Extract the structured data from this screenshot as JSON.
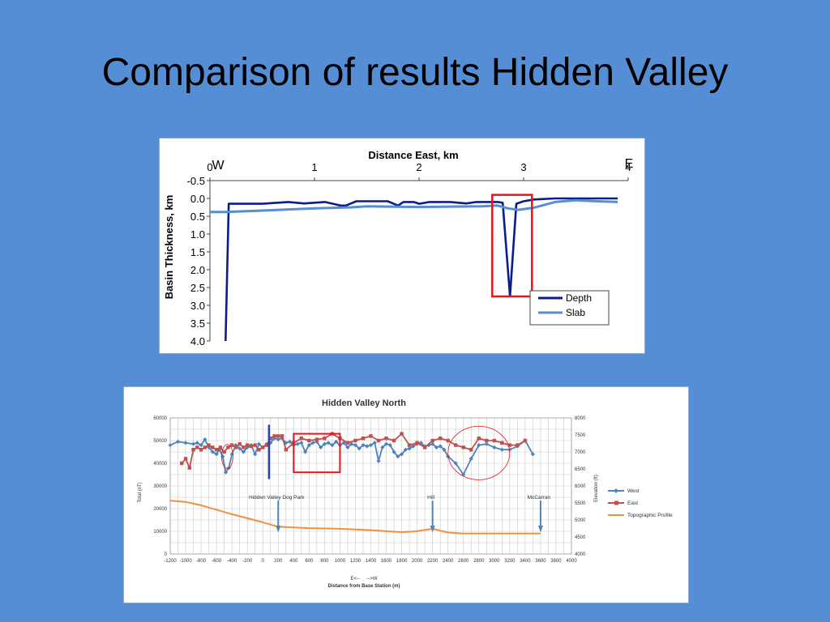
{
  "slide": {
    "title": "Comparison of results Hidden Valley"
  },
  "chart_data": [
    {
      "type": "line",
      "title": "Distance East, km",
      "xlabel": "Distance East, km",
      "ylabel": "Basin Thickness, km",
      "xlim": [
        0,
        4
      ],
      "ylim": [
        -0.5,
        4.0
      ],
      "y_inverted": true,
      "x_axis_position": "top",
      "x_ticks": [
        "0",
        "1",
        "2",
        "3",
        "4"
      ],
      "y_ticks": [
        "-0.5",
        "0.0",
        "0.5",
        "1.0",
        "1.5",
        "2.0",
        "2.5",
        "3.0",
        "3.5",
        "4.0"
      ],
      "corner_labels": {
        "left": "W",
        "right": "E"
      },
      "legend_position": "bottom-right",
      "highlight_box": {
        "x": [
          2.7,
          3.08
        ],
        "y": [
          -0.1,
          2.75
        ],
        "color": "#e8141b"
      },
      "series": [
        {
          "name": "Depth",
          "color": "#0b1c8c",
          "x": [
            0.15,
            0.18,
            0.5,
            0.75,
            0.9,
            1.1,
            1.25,
            1.3,
            1.4,
            1.55,
            1.7,
            1.8,
            1.85,
            1.95,
            2.0,
            2.1,
            2.3,
            2.45,
            2.55,
            2.65,
            2.75,
            2.8,
            2.87,
            2.93,
            3.0,
            3.1,
            3.3,
            3.5,
            3.9
          ],
          "y": [
            4.0,
            0.15,
            0.15,
            0.1,
            0.14,
            0.1,
            0.2,
            0.2,
            0.08,
            0.08,
            0.08,
            0.2,
            0.1,
            0.1,
            0.15,
            0.1,
            0.1,
            0.14,
            0.1,
            0.1,
            0.1,
            0.12,
            2.75,
            0.15,
            0.08,
            0.03,
            0.0,
            0.0,
            0.0
          ]
        },
        {
          "name": "Slab",
          "color": "#558ed5",
          "x": [
            0.0,
            0.15,
            0.5,
            1.0,
            1.35,
            1.5,
            1.7,
            2.0,
            2.3,
            2.6,
            2.75,
            2.85,
            2.95,
            3.1,
            3.3,
            3.5,
            3.7,
            3.9
          ],
          "y": [
            0.38,
            0.38,
            0.34,
            0.28,
            0.25,
            0.22,
            0.23,
            0.24,
            0.23,
            0.22,
            0.2,
            0.28,
            0.32,
            0.26,
            0.1,
            0.05,
            0.08,
            0.1
          ]
        }
      ]
    },
    {
      "type": "line",
      "title": "Hidden Valley North",
      "xlabel": "Distance from Base Station (m)",
      "xlabel_note": "E<--     -->W",
      "ylabel": "Total (nT)",
      "y2label": "Elevation (ft)",
      "xlim": [
        -1200,
        4000
      ],
      "ylim": [
        0,
        60000
      ],
      "y2lim": [
        4000,
        8000
      ],
      "x_ticks": [
        "-1200",
        "-1000",
        "-800",
        "-600",
        "-400",
        "-200",
        "0",
        "200",
        "400",
        "600",
        "800",
        "1000",
        "1200",
        "1400",
        "1600",
        "1800",
        "2000",
        "2200",
        "2400",
        "2600",
        "2800",
        "3000",
        "3200",
        "3400",
        "3600",
        "3800",
        "4000"
      ],
      "y_ticks": [
        "0",
        "10000",
        "20000",
        "30000",
        "40000",
        "50000",
        "60000"
      ],
      "y2_ticks": [
        "4000",
        "4500",
        "5000",
        "5500",
        "6000",
        "6500",
        "7000",
        "7500",
        "8000"
      ],
      "legend_position": "right",
      "annotations": [
        {
          "text": "Hidden Valley Dog Park",
          "x": 200
        },
        {
          "text": "Hill",
          "x": 2200
        },
        {
          "text": "McCarran",
          "x": 3600
        }
      ],
      "markers": [
        {
          "type": "vertical-line",
          "x": 80,
          "color": "#2845a8"
        },
        {
          "type": "rectangle",
          "x": [
            400,
            1000
          ],
          "y": [
            36000,
            53000
          ],
          "color": "#e8141b"
        }
      ],
      "series": [
        {
          "name": "West",
          "color": "#4f81bd",
          "x": [
            -1200,
            -1100,
            -1000,
            -900,
            -850,
            -800,
            -750,
            -700,
            -650,
            -600,
            -560,
            -520,
            -480,
            -440,
            -400,
            -350,
            -300,
            -250,
            -200,
            -150,
            -100,
            -50,
            0,
            50,
            100,
            150,
            200,
            250,
            300,
            350,
            400,
            450,
            500,
            550,
            600,
            650,
            700,
            750,
            800,
            850,
            900,
            950,
            1000,
            1050,
            1100,
            1150,
            1200,
            1250,
            1300,
            1350,
            1400,
            1450,
            1500,
            1550,
            1600,
            1650,
            1700,
            1750,
            1800,
            1850,
            1900,
            1950,
            2000,
            2050,
            2100,
            2150,
            2200,
            2250,
            2300,
            2350,
            2400,
            2500,
            2600,
            2700,
            2800,
            2900,
            3000,
            3100,
            3200,
            3300,
            3400,
            3500
          ],
          "y": [
            48000,
            49500,
            49000,
            48500,
            49000,
            48000,
            50500,
            47000,
            45000,
            44000,
            46000,
            43000,
            36000,
            38000,
            44000,
            48000,
            46500,
            45000,
            47000,
            48000,
            44000,
            48500,
            47000,
            48500,
            49000,
            51000,
            50500,
            51000,
            49000,
            49500,
            48000,
            48500,
            49000,
            45000,
            48000,
            49000,
            49500,
            47000,
            48500,
            49000,
            48000,
            49500,
            48000,
            49000,
            47000,
            48500,
            48000,
            46500,
            48000,
            47500,
            48000,
            49000,
            41000,
            47000,
            48500,
            48000,
            45000,
            43000,
            44000,
            46000,
            46500,
            47500,
            48500,
            49000,
            47500,
            48000,
            48500,
            47000,
            47500,
            46000,
            43000,
            40000,
            35000,
            42000,
            48000,
            48500,
            47000,
            46000,
            46000,
            47500,
            50000,
            44000
          ]
        },
        {
          "name": "East",
          "color": "#c0504d",
          "x": [
            -1050,
            -1000,
            -950,
            -900,
            -850,
            -800,
            -750,
            -700,
            -650,
            -600,
            -550,
            -500,
            -450,
            -400,
            -350,
            -300,
            -250,
            -200,
            -150,
            -100,
            -50,
            0,
            50,
            100,
            150,
            200,
            250,
            300,
            400,
            500,
            600,
            700,
            800,
            900,
            1000,
            1100,
            1200,
            1300,
            1400,
            1500,
            1600,
            1700,
            1800,
            1900,
            2000,
            2100,
            2200,
            2300,
            2400,
            2500,
            2600,
            2700,
            2800,
            2900,
            3000,
            3100,
            3200,
            3300,
            3400
          ],
          "y": [
            40000,
            42000,
            38000,
            46000,
            47000,
            46000,
            47000,
            48000,
            47000,
            46000,
            47000,
            45000,
            47000,
            48000,
            47000,
            48500,
            47000,
            48000,
            47500,
            48000,
            46000,
            47000,
            48000,
            51000,
            52000,
            52000,
            52000,
            46000,
            49000,
            51000,
            50000,
            50500,
            51000,
            53000,
            51000,
            49000,
            50000,
            51000,
            52000,
            50000,
            51000,
            50000,
            53000,
            48000,
            49000,
            47000,
            50000,
            51000,
            50000,
            48000,
            47000,
            46000,
            51000,
            50000,
            50000,
            49000,
            48000,
            48000,
            50000
          ]
        },
        {
          "name": "Topographic Profile",
          "color": "#f0903c",
          "axis": "y2",
          "x": [
            -1200,
            -1000,
            -800,
            -600,
            -400,
            -200,
            0,
            200,
            400,
            600,
            800,
            1000,
            1200,
            1400,
            1600,
            1800,
            2000,
            2200,
            2400,
            2600,
            2800,
            3000,
            3200,
            3400,
            3600
          ],
          "y": [
            5570,
            5530,
            5430,
            5300,
            5170,
            5050,
            4930,
            4800,
            4780,
            4760,
            4750,
            4740,
            4720,
            4700,
            4670,
            4640,
            4670,
            4740,
            4630,
            4600,
            4600,
            4600,
            4600,
            4600,
            4600
          ]
        }
      ]
    }
  ]
}
